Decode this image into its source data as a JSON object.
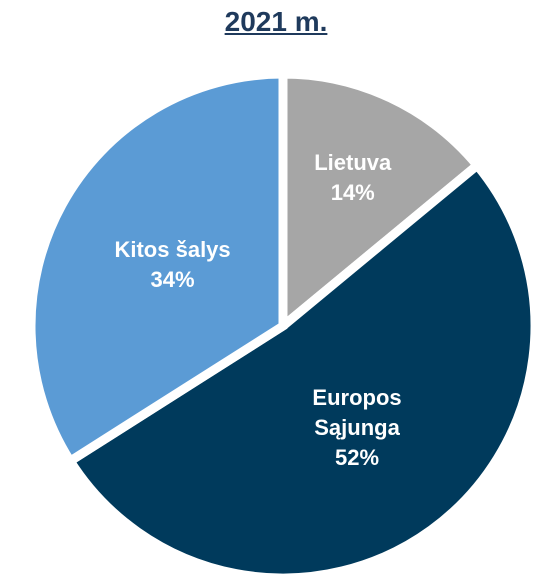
{
  "chart_data": {
    "type": "pie",
    "title": "2021 m.",
    "categories": [
      "Lietuva",
      "Europos Sąjunga",
      "Kitos šalys"
    ],
    "values": [
      14,
      52,
      34
    ],
    "value_labels": [
      "14%",
      "52%",
      "34%"
    ],
    "colors": [
      "#a6a6a6",
      "#003a5c",
      "#5b9bd5"
    ]
  }
}
